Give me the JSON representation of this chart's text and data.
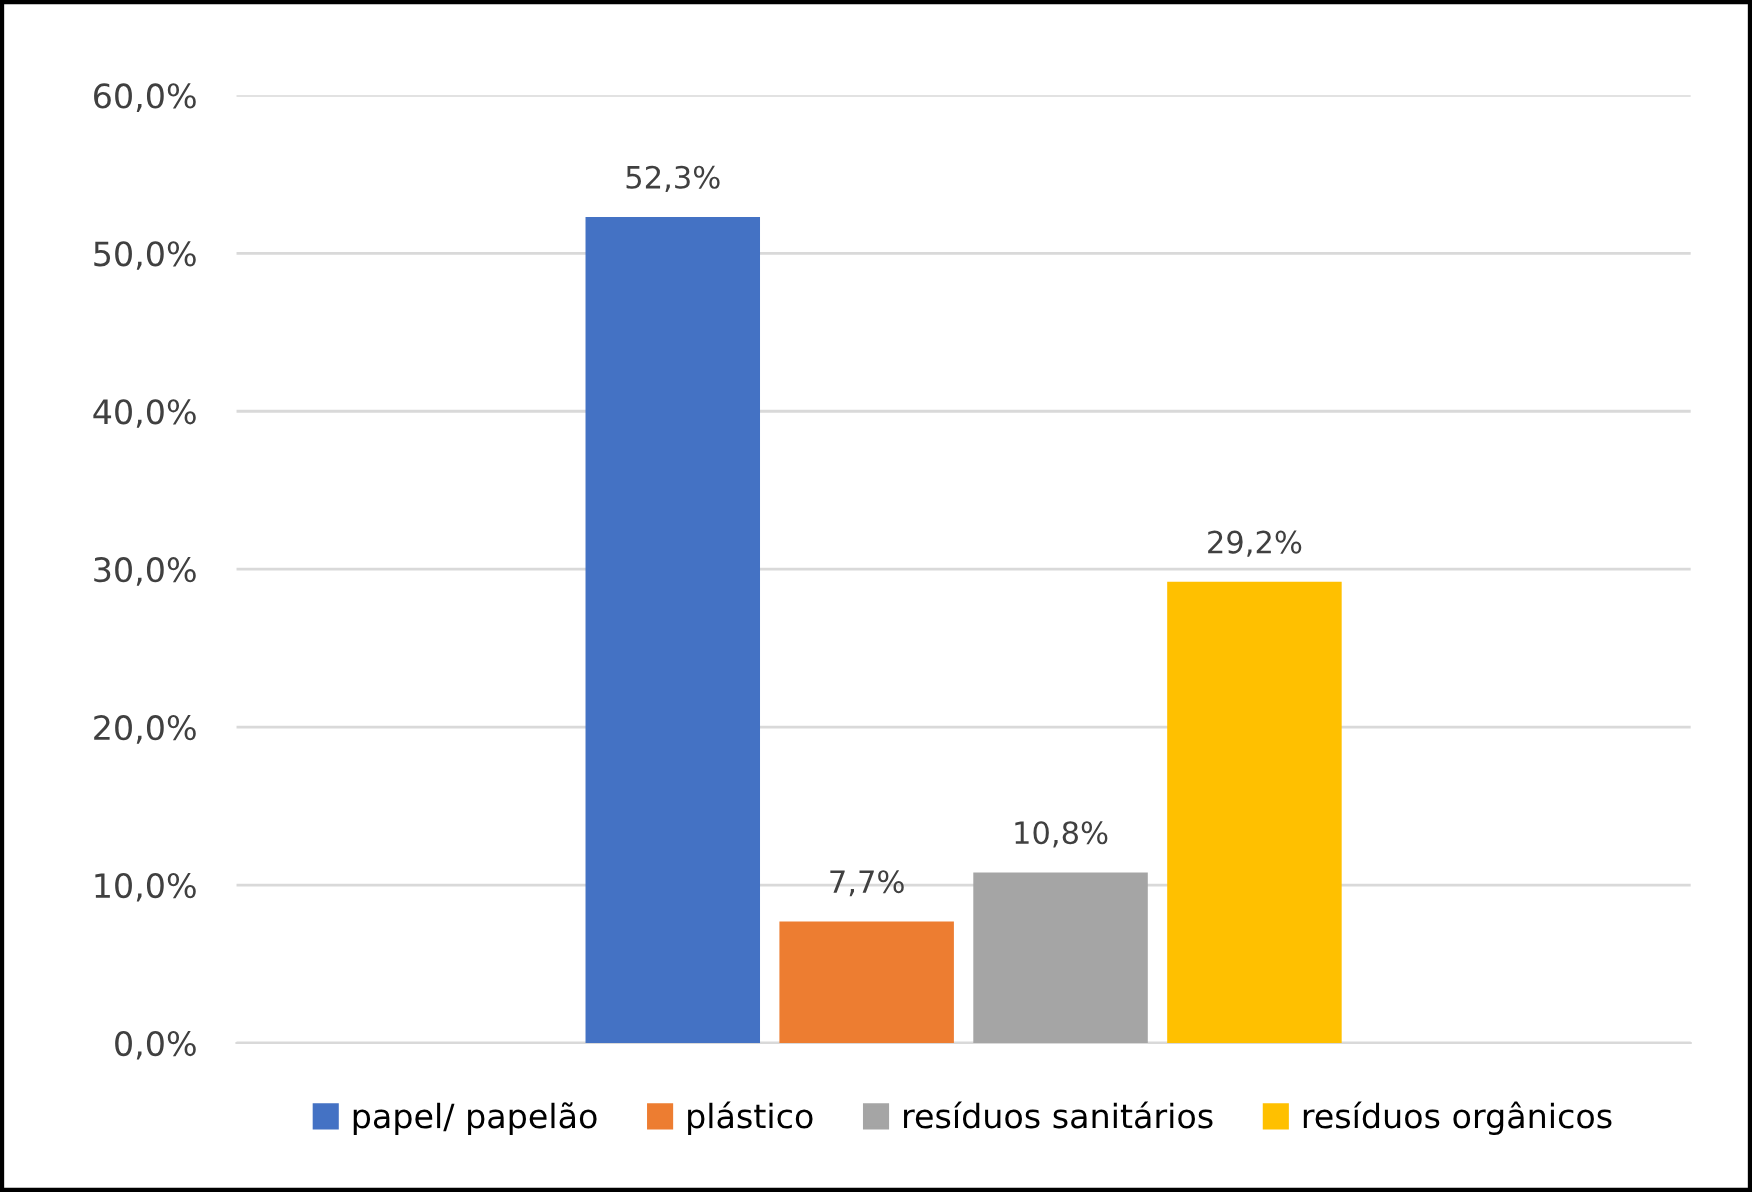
{
  "chart_data": {
    "type": "bar",
    "categories": [
      null
    ],
    "series": [
      {
        "name": "papel/ papelão",
        "color": "#4472c4",
        "values": [
          52.3
        ],
        "value_labels": [
          "52,3%"
        ]
      },
      {
        "name": "plástico",
        "color": "#ed7d31",
        "values": [
          7.7
        ],
        "value_labels": [
          "7,7%"
        ]
      },
      {
        "name": "resíduos sanitários",
        "color": "#a5a5a5",
        "values": [
          10.8
        ],
        "value_labels": [
          "10,8%"
        ]
      },
      {
        "name": "resíduos orgânicos",
        "color": "#ffc000",
        "values": [
          29.2
        ],
        "value_labels": [
          "29,2%"
        ]
      }
    ],
    "ylim": [
      0,
      60
    ],
    "yticks": [
      {
        "value": 0,
        "label": "0,0%"
      },
      {
        "value": 10,
        "label": "10,0%"
      },
      {
        "value": 20,
        "label": "20,0%"
      },
      {
        "value": 30,
        "label": "30,0%"
      },
      {
        "value": 40,
        "label": "40,0%"
      },
      {
        "value": 50,
        "label": "50,0%"
      },
      {
        "value": 60,
        "label": "60,0%"
      }
    ],
    "grid": "y",
    "legend": "bottom"
  }
}
